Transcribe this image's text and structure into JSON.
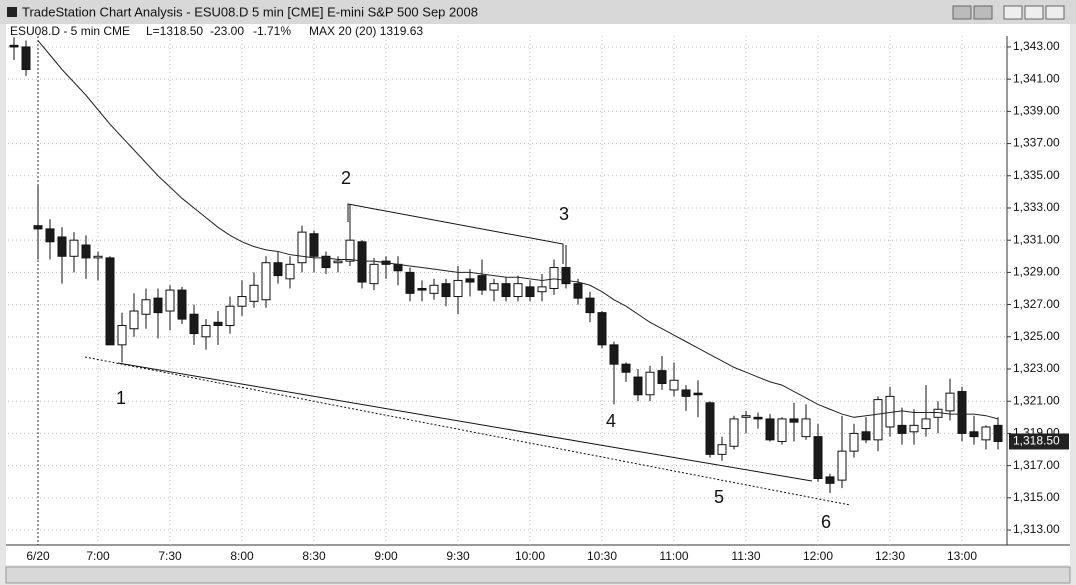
{
  "window_title": "TradeStation Chart Analysis - ESU08.D 5 min [CME] E-mini S&P 500 Sep 2008",
  "chart_data": {
    "type": "candlestick",
    "info": {
      "symbol": "ESU08.D - 5 min CME",
      "last": "L=1318.50",
      "change": "-23.00",
      "change_pct": "-1.71%",
      "study": "MAX 20 (20) 1319.63"
    },
    "categories": [
      null,
      null,
      "6/20",
      null,
      null,
      null,
      null,
      "7:00",
      null,
      null,
      null,
      null,
      null,
      "7:30",
      null,
      null,
      null,
      null,
      null,
      "8:00",
      null,
      null,
      null,
      null,
      null,
      "8:30",
      null,
      null,
      null,
      null,
      null,
      "9:00",
      null,
      null,
      null,
      null,
      null,
      "9:30",
      null,
      null,
      null,
      null,
      null,
      "10:00",
      null,
      null,
      null,
      null,
      null,
      "10:30",
      null,
      null,
      null,
      null,
      null,
      "11:00",
      null,
      null,
      null,
      null,
      null,
      "11:30",
      null,
      null,
      null,
      null,
      null,
      "12:00",
      null,
      null,
      null,
      null,
      null,
      "12:30",
      null,
      null,
      null,
      null,
      null,
      "13:00",
      null,
      null,
      null
    ],
    "open": [
      1343.1,
      1343,
      1331.9,
      1331.7,
      1331.2,
      1330,
      1330.7,
      1329.9,
      1329.9,
      1324.5,
      1325.5,
      1326.4,
      1327.4,
      1326.6,
      1327.9,
      1326.4,
      1325,
      1325.9,
      1325.7,
      1326.9,
      1327.2,
      1327.3,
      1329.6,
      1328.6,
      1329.6,
      1331.4,
      1330,
      1329.6,
      1329.7,
      1330.9,
      1328.3,
      1329.7,
      1329.5,
      1329,
      1328,
      1327.7,
      1328.3,
      1327.5,
      1328.6,
      1328.8,
      1327.9,
      1328.3,
      1327.5,
      1328.1,
      1327.8,
      1328,
      1329.3,
      1328.3,
      1327.4,
      1326.5,
      1324.5,
      1323.3,
      1322.5,
      1321.4,
      1322.9,
      1321.7,
      1321.7,
      1321.5,
      1320.9,
      1317.7,
      1318.2,
      1320,
      1320,
      1319.9,
      1318.5,
      1319.9,
      1318.8,
      1318.8,
      1316.3,
      1316.1,
      1317.9,
      1319.1,
      1318.6,
      1319.4,
      1319.5,
      1319.1,
      1319.3,
      1320,
      1320.4,
      1321.6,
      1319.1,
      1318.6,
      1319.5
    ],
    "high": [
      1343.6,
      1343.4,
      1334.4,
      1332.3,
      1331.8,
      1331.5,
      1331.3,
      1330.3,
      1330,
      1326.5,
      1327.7,
      1328,
      1328,
      1328.2,
      1328.1,
      1327,
      1326.1,
      1326.6,
      1327.5,
      1328.5,
      1329,
      1330,
      1330.3,
      1330,
      1331.9,
      1331.6,
      1330.3,
      1330,
      1333.2,
      1331,
      1329.9,
      1330,
      1330,
      1329.3,
      1328.5,
      1328.6,
      1328.6,
      1329.4,
      1329.2,
      1329.8,
      1328.6,
      1328.7,
      1328.8,
      1328.5,
      1328.9,
      1329.8,
      1330.7,
      1328.6,
      1327.8,
      1326.6,
      1324.7,
      1323.4,
      1323,
      1323.2,
      1323.8,
      1323.4,
      1322,
      1322.3,
      1321,
      1318.8,
      1320.1,
      1320.4,
      1320.3,
      1320.2,
      1320,
      1320.9,
      1320.8,
      1319.6,
      1316.5,
      1320.1,
      1319.6,
      1320,
      1321.3,
      1321.9,
      1320.6,
      1320.5,
      1322,
      1321,
      1322.4,
      1321.9,
      1320.1,
      1319.5,
      1320
    ],
    "low": [
      1342.2,
      1341.2,
      1329.8,
      1329.8,
      1328.3,
      1329,
      1328.6,
      1328.5,
      1324.5,
      1323.4,
      1325,
      1325.5,
      1324.9,
      1325.4,
      1325.8,
      1324.5,
      1324.2,
      1324.5,
      1325.2,
      1326.3,
      1326.8,
      1326.8,
      1328.3,
      1328,
      1329,
      1329,
      1328.9,
      1329,
      1329.4,
      1328,
      1327.9,
      1328.6,
      1328.2,
      1327.2,
      1327.2,
      1327.3,
      1326.9,
      1326.4,
      1327.5,
      1327.6,
      1327.2,
      1327.2,
      1327.2,
      1327.2,
      1327.2,
      1327.6,
      1328,
      1327,
      1325.9,
      1324.3,
      1320.8,
      1322.2,
      1321,
      1321,
      1321.7,
      1321.3,
      1320.4,
      1320,
      1317.5,
      1317.3,
      1318,
      1319,
      1319.3,
      1318.5,
      1318.3,
      1318.5,
      1318.6,
      1316,
      1315.3,
      1315.6,
      1317.5,
      1318.4,
      1317.9,
      1318.8,
      1318.3,
      1318.3,
      1318.8,
      1319,
      1319.8,
      1318.5,
      1318.3,
      1318,
      1318
    ],
    "close": [
      1343,
      1341.6,
      1331.7,
      1330.9,
      1330,
      1331,
      1329.9,
      1330,
      1324.5,
      1325.7,
      1326.6,
      1327.3,
      1326.5,
      1327.9,
      1326.1,
      1325.2,
      1325.7,
      1325.7,
      1326.9,
      1327.5,
      1328.2,
      1329.6,
      1328.8,
      1329.5,
      1331.5,
      1330,
      1329.3,
      1329.7,
      1331,
      1328.4,
      1329.5,
      1329.5,
      1329.1,
      1327.7,
      1327.9,
      1328.2,
      1327.5,
      1328.5,
      1328.4,
      1327.9,
      1328.3,
      1327.5,
      1328.3,
      1327.5,
      1328.1,
      1329.3,
      1328.3,
      1327.4,
      1326.5,
      1324.5,
      1323.3,
      1322.8,
      1321.4,
      1322.8,
      1322.1,
      1322.3,
      1321.3,
      1321.4,
      1317.7,
      1318.3,
      1319.9,
      1320.1,
      1319.9,
      1318.6,
      1319.9,
      1319.7,
      1319.9,
      1316.2,
      1315.9,
      1317.9,
      1319,
      1318.6,
      1321.1,
      1321.3,
      1319,
      1319.5,
      1319.9,
      1320.5,
      1321.5,
      1319,
      1318.8,
      1319.4,
      1318.5
    ],
    "ma": {
      "color": "#222222",
      "values": [
        null,
        null,
        1343.4,
        1342.5,
        1341.6,
        1340.8,
        1340,
        1339.1,
        1338.2,
        1337.4,
        1336.6,
        1335.8,
        1335,
        1334.3,
        1333.6,
        1333,
        1332.4,
        1331.8,
        1331.3,
        1330.9,
        1330.6,
        1330.4,
        1330.3,
        1330.1,
        1330,
        1329.9,
        1329.9,
        1329.8,
        1329.8,
        1329.7,
        1329.7,
        1329.6,
        1329.5,
        1329.4,
        1329.3,
        1329.2,
        1329.1,
        1329,
        1329,
        1328.9,
        1328.8,
        1328.7,
        1328.7,
        1328.6,
        1328.5,
        1328.6,
        1328.5,
        1328.4,
        1328.2,
        1327.8,
        1327.3,
        1326.9,
        1326.4,
        1325.9,
        1325.5,
        1325.1,
        1324.7,
        1324.3,
        1323.9,
        1323.5,
        1323.1,
        1322.8,
        1322.5,
        1322.2,
        1322,
        1321.6,
        1321.2,
        1320.8,
        1320.5,
        1320.2,
        1320,
        1320.1,
        1320.2,
        1320.3,
        1320.4,
        1320.3,
        1320.3,
        1320.3,
        1320.2,
        1320.2,
        1320.2,
        1320.1,
        1319.9
      ]
    },
    "up_color": "#ffffff",
    "down_color": "#1a1a1a",
    "ylim": [
      1312.07,
      1343.68
    ],
    "yticks": [
      {
        "value": 1313,
        "label": "1,313.00"
      },
      {
        "value": 1315,
        "label": "1,315.00"
      },
      {
        "value": 1317,
        "label": "1,317.00"
      },
      {
        "value": 1319,
        "label": "1,319.00"
      },
      {
        "value": 1321,
        "label": "1,321.00"
      },
      {
        "value": 1323,
        "label": "1,323.00"
      },
      {
        "value": 1325,
        "label": "1,325.00"
      },
      {
        "value": 1327,
        "label": "1,327.00"
      },
      {
        "value": 1329,
        "label": "1,329.00"
      },
      {
        "value": 1331,
        "label": "1,331.00"
      },
      {
        "value": 1333,
        "label": "1,333.00"
      },
      {
        "value": 1335,
        "label": "1,335.00"
      },
      {
        "value": 1337,
        "label": "1,337.00"
      },
      {
        "value": 1339,
        "label": "1,339.00"
      },
      {
        "value": 1341,
        "label": "1,341.00"
      },
      {
        "value": 1343,
        "label": "1,343.00"
      }
    ],
    "grid": true,
    "last_price": {
      "value": 1318.5,
      "label": "1,318.50"
    },
    "annotations": [
      "1",
      "2",
      "3",
      "4",
      "5",
      "6"
    ]
  }
}
